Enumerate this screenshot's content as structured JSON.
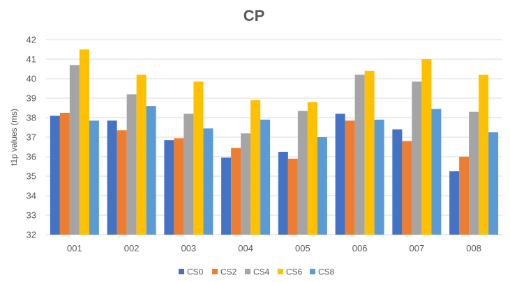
{
  "chart_data": {
    "type": "bar",
    "title": "CP",
    "xlabel": "",
    "ylabel": "t1p values  (ms)",
    "ylim": [
      32,
      42
    ],
    "yticks": [
      32,
      33,
      34,
      35,
      36,
      37,
      38,
      39,
      40,
      41,
      42
    ],
    "grid": true,
    "legend_position": "bottom",
    "categories": [
      "001",
      "002",
      "003",
      "004",
      "005",
      "006",
      "007",
      "008"
    ],
    "series": [
      {
        "name": "CS0",
        "color": "#4472c4",
        "values": [
          38.1,
          37.85,
          36.85,
          35.95,
          36.25,
          38.2,
          37.4,
          35.25
        ]
      },
      {
        "name": "CS2",
        "color": "#ed7d31",
        "values": [
          38.25,
          37.35,
          36.95,
          36.45,
          35.9,
          37.85,
          36.8,
          36.0
        ]
      },
      {
        "name": "CS4",
        "color": "#a5a5a5",
        "values": [
          40.7,
          39.2,
          38.2,
          37.2,
          38.35,
          40.2,
          39.85,
          38.3
        ]
      },
      {
        "name": "CS6",
        "color": "#ffc000",
        "values": [
          41.5,
          40.2,
          39.85,
          38.9,
          38.8,
          40.4,
          41.0,
          40.2
        ]
      },
      {
        "name": "CS8",
        "color": "#5b9bd5",
        "values": [
          37.85,
          38.6,
          37.45,
          37.9,
          37.0,
          37.9,
          38.45,
          37.25
        ]
      }
    ]
  }
}
